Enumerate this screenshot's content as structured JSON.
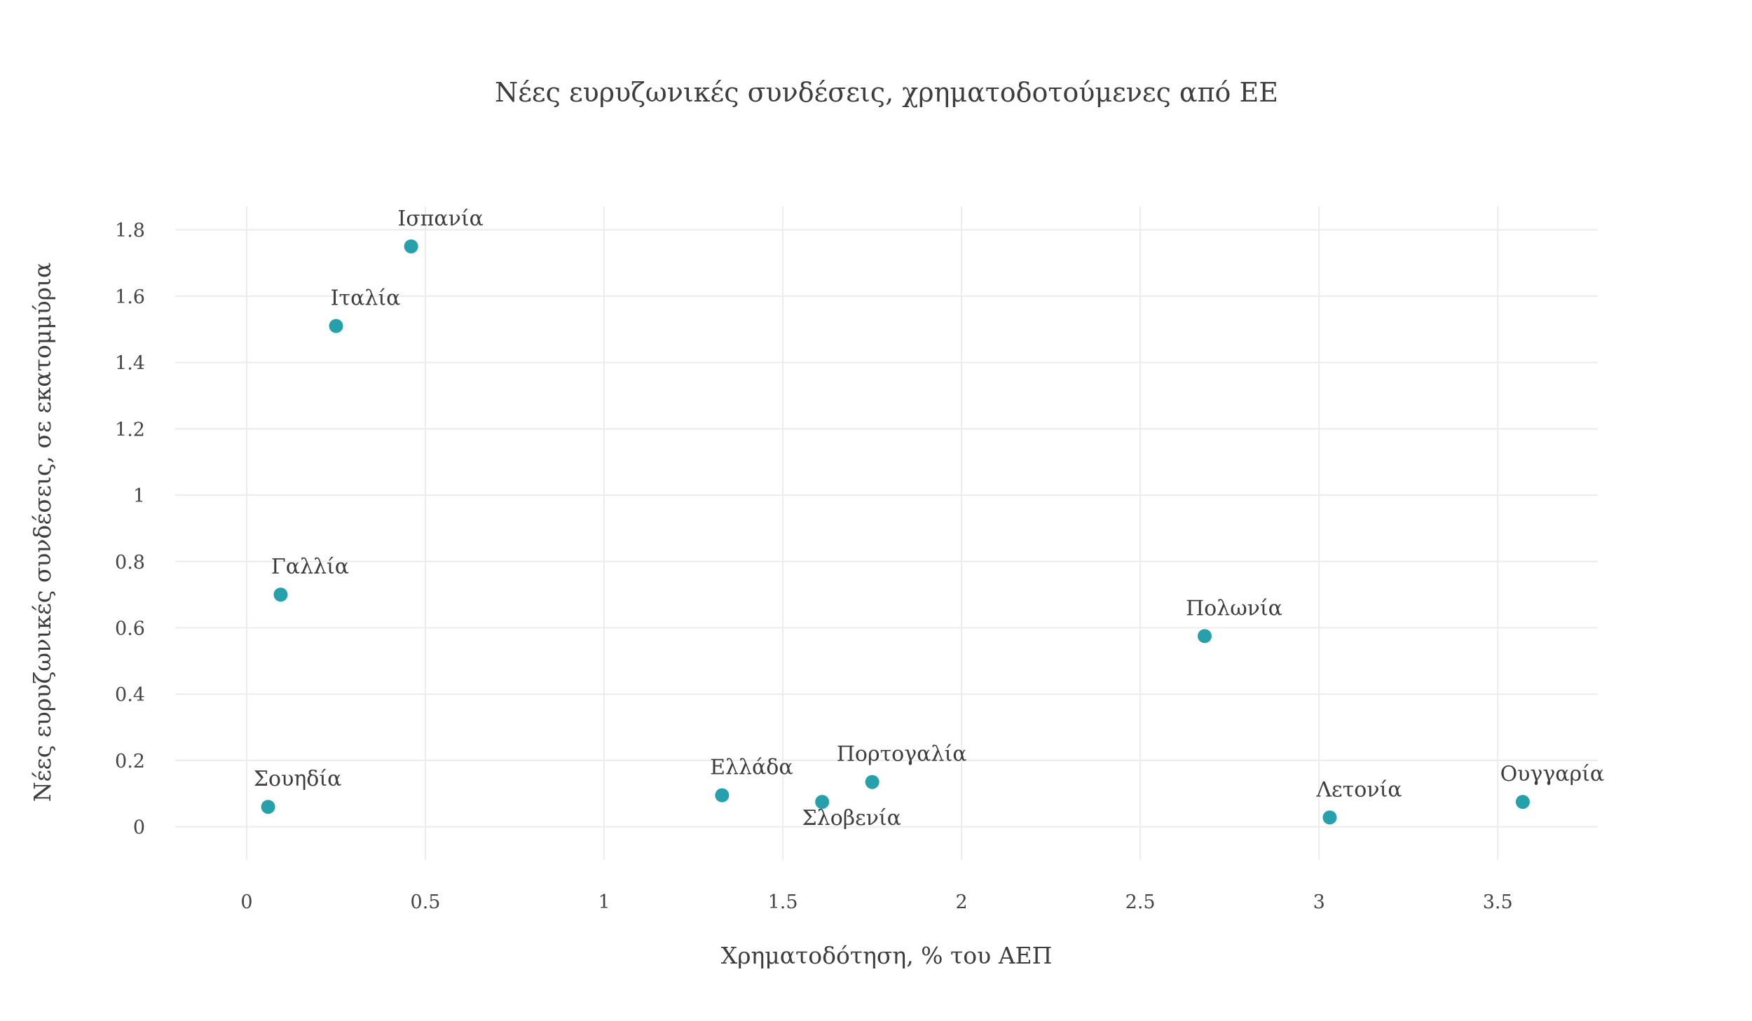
{
  "chart_data": {
    "type": "scatter",
    "title": "Νέες ευρυζωνικές συνδέσεις, χρηματοδοτούμενες από ΕΕ",
    "xlabel": "Χρηματοδότηση, % του ΑΕΠ",
    "ylabel": "Νέες ευρυζωνικές συνδέσεις, σε εκατομμύρια",
    "xlim": [
      -0.2,
      3.78
    ],
    "ylim": [
      -0.1,
      1.87
    ],
    "xticks": [
      0,
      0.5,
      1,
      1.5,
      2,
      2.5,
      3,
      3.5
    ],
    "xtick_labels": [
      "0",
      "0.5",
      "1",
      "1.5",
      "2",
      "2.5",
      "3",
      "3.5"
    ],
    "yticks": [
      0,
      0.2,
      0.4,
      0.6,
      0.8,
      1,
      1.2,
      1.4,
      1.6,
      1.8
    ],
    "ytick_labels": [
      "0",
      "0.2",
      "0.4",
      "0.6",
      "0.8",
      "1",
      "1.2",
      "1.4",
      "1.6",
      "1.8"
    ],
    "grid": true,
    "marker_color": "#26a1ab",
    "points": [
      {
        "label": "Ισπανία",
        "x": 0.46,
        "y": 1.75,
        "label_position": "above"
      },
      {
        "label": "Ιταλία",
        "x": 0.25,
        "y": 1.51,
        "label_position": "above"
      },
      {
        "label": "Γαλλία",
        "x": 0.095,
        "y": 0.7,
        "label_position": "above"
      },
      {
        "label": "Σουηδία",
        "x": 0.06,
        "y": 0.06,
        "label_position": "above"
      },
      {
        "label": "Ελλάδα",
        "x": 1.33,
        "y": 0.095,
        "label_position": "above"
      },
      {
        "label": "Σλοβενία",
        "x": 1.61,
        "y": 0.075,
        "label_position": "below"
      },
      {
        "label": "Πορτογαλία",
        "x": 1.75,
        "y": 0.135,
        "label_position": "above"
      },
      {
        "label": "Πολωνία",
        "x": 2.68,
        "y": 0.575,
        "label_position": "above"
      },
      {
        "label": "Λετονία",
        "x": 3.03,
        "y": 0.028,
        "label_position": "above"
      },
      {
        "label": "Ουγγαρία",
        "x": 3.57,
        "y": 0.075,
        "label_position": "above"
      }
    ]
  }
}
